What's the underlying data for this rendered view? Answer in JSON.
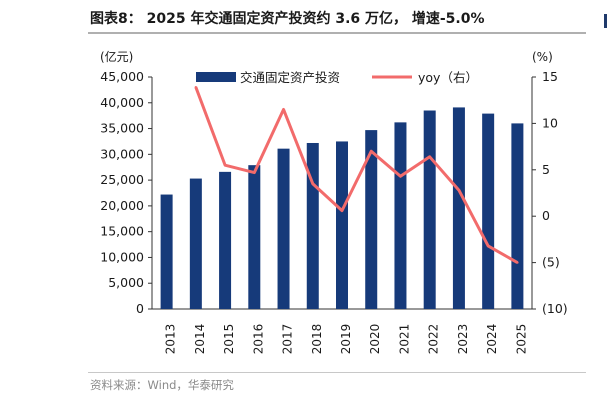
{
  "page": {
    "title": "图表8：  2025 年交通固定资产投资约 3.6 万亿，  增速-5.0%",
    "source": "资料来源：Wind，华泰研究"
  },
  "colors": {
    "bar": "#163a7a",
    "line": "#f26b6b",
    "axis": "#333333",
    "text": "#1a1a1a",
    "rule": "#b0b0b0"
  },
  "chart_data": {
    "type": "bar",
    "categories": [
      "2013",
      "2014",
      "2015",
      "2016",
      "2017",
      "2018",
      "2019",
      "2020",
      "2021",
      "2022",
      "2023",
      "2024",
      "2025"
    ],
    "series": [
      {
        "name": "交通固定资产投资",
        "type": "bar",
        "axis": "left",
        "values": [
          22200,
          25300,
          26600,
          27900,
          31100,
          32200,
          32500,
          34700,
          36200,
          38500,
          39100,
          37900,
          36000
        ]
      },
      {
        "name": "yoy（右）",
        "type": "line",
        "axis": "right",
        "values": [
          null,
          13.9,
          5.5,
          4.7,
          11.5,
          3.5,
          0.6,
          7.0,
          4.3,
          6.4,
          2.8,
          -3.2,
          -5.0
        ]
      }
    ],
    "y_left": {
      "unit": "(亿元)",
      "ylim": [
        0,
        45000
      ],
      "ticks": [
        "0",
        "5,000",
        "10,000",
        "15,000",
        "20,000",
        "25,000",
        "30,000",
        "35,000",
        "40,000",
        "45,000"
      ]
    },
    "y_right": {
      "unit": "(%)",
      "ylim": [
        -10,
        15
      ],
      "ticks": [
        "(10)",
        "(5)",
        "0",
        "5",
        "10",
        "15"
      ]
    },
    "grid": false,
    "legend": "top"
  }
}
